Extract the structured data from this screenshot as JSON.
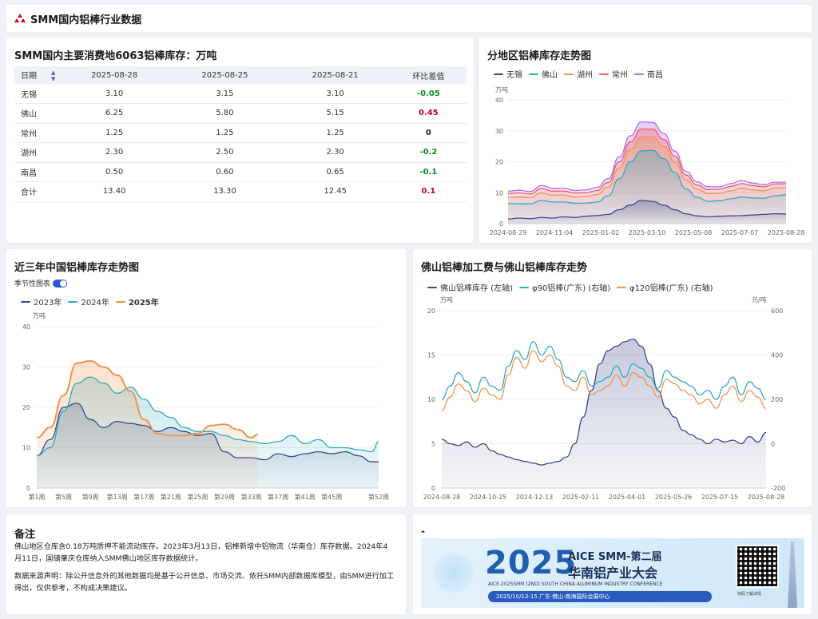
{
  "header": {
    "title": "SMM国内铝棒行业数据"
  },
  "table_card": {
    "title": "SMM国内主要消费地6063铝棒库存：万吨",
    "columns": [
      "日期",
      "2025-08-28",
      "2025-08-25",
      "2025-08-21",
      "环比差值"
    ],
    "rows": [
      [
        "无锡",
        "3.10",
        "3.15",
        "3.10",
        "-0.05"
      ],
      [
        "佛山",
        "6.25",
        "5.80",
        "5.15",
        "0.45"
      ],
      [
        "常州",
        "1.25",
        "1.25",
        "1.25",
        "0"
      ],
      [
        "湖州",
        "2.30",
        "2.50",
        "2.30",
        "-0.2"
      ],
      [
        "南昌",
        "0.50",
        "0.60",
        "0.65",
        "-0.1"
      ],
      [
        "合计",
        "13.40",
        "13.30",
        "12.45",
        "0.1"
      ]
    ]
  },
  "colors": {
    "navy": "#3b4a86",
    "teal": "#2eaac1",
    "orange": "#f0954a",
    "red": "#ef5d5d",
    "purple": "#b56cf0",
    "pos": "#d0021b",
    "neg": "#0a8a2a"
  },
  "chart_data": [
    {
      "id": "regional",
      "type": "area",
      "title": "分地区铝棒库存走势图",
      "ylabel": "万吨",
      "ylim": [
        0,
        40
      ],
      "yticks": [
        0,
        10,
        20,
        30,
        40
      ],
      "x_tick_labels": [
        "2024-08-29",
        "2024-11-04",
        "2025-01-02",
        "2025-03-10",
        "2025-05-08",
        "2025-07-07",
        "2025-08-28"
      ],
      "stacked": true,
      "series": [
        {
          "name": "无锡",
          "color": "#3b4a86",
          "values": [
            1.5,
            1.8,
            1.6,
            2.0,
            1.8,
            2.2,
            2.0,
            2.4,
            2.6,
            3.0,
            4.5,
            6.0,
            7.5,
            7.2,
            6.0,
            4.5,
            3.2,
            2.5,
            2.2,
            2.4,
            2.5,
            2.6,
            2.8,
            3.0,
            3.2,
            3.1
          ]
        },
        {
          "name": "佛山",
          "color": "#2eaac1",
          "values": [
            5.0,
            4.6,
            4.8,
            5.5,
            5.2,
            4.8,
            4.6,
            4.2,
            4.4,
            6.0,
            10.0,
            14.0,
            16.0,
            16.5,
            15.0,
            12.0,
            8.0,
            6.0,
            5.0,
            5.0,
            5.5,
            6.0,
            5.5,
            5.2,
            5.8,
            6.25
          ]
        },
        {
          "name": "湖州",
          "color": "#f0954a",
          "values": [
            2.0,
            2.2,
            2.0,
            2.4,
            2.2,
            2.3,
            2.0,
            2.2,
            2.4,
            2.8,
            3.5,
            4.0,
            4.5,
            4.3,
            4.0,
            3.5,
            3.0,
            2.6,
            2.5,
            2.4,
            2.6,
            2.8,
            2.6,
            2.4,
            2.5,
            2.3
          ]
        },
        {
          "name": "常州",
          "color": "#ef5d5d",
          "values": [
            1.2,
            1.3,
            1.2,
            1.4,
            1.3,
            1.2,
            1.3,
            1.2,
            1.3,
            1.5,
            2.0,
            2.4,
            2.6,
            2.5,
            2.2,
            1.8,
            1.5,
            1.4,
            1.3,
            1.3,
            1.4,
            1.5,
            1.4,
            1.3,
            1.3,
            1.25
          ]
        },
        {
          "name": "南昌",
          "color": "#b56cf0",
          "values": [
            0.8,
            0.9,
            0.8,
            1.0,
            0.9,
            0.9,
            0.8,
            0.9,
            1.0,
            1.2,
            1.6,
            2.0,
            2.3,
            2.2,
            2.0,
            1.6,
            1.2,
            1.0,
            0.9,
            0.8,
            0.9,
            1.0,
            0.8,
            0.7,
            0.6,
            0.5
          ]
        }
      ]
    },
    {
      "id": "seasonal",
      "type": "line",
      "title": "近三年中国铝棒库存走势图",
      "toggle_label": "季节性图表",
      "ylabel": "万吨",
      "ylim": [
        0,
        40
      ],
      "yticks": [
        0,
        10,
        20,
        30,
        40
      ],
      "x_tick_labels": [
        "第1周",
        "第5周",
        "第9周",
        "第13周",
        "第17周",
        "第21周",
        "第25周",
        "第29周",
        "第33周",
        "第37周",
        "第41周",
        "第45周",
        "第52周"
      ],
      "series": [
        {
          "name": "2023年",
          "color": "#3b4a86",
          "bold": false,
          "x": [
            1,
            3,
            5,
            7,
            9,
            11,
            13,
            15,
            17,
            19,
            21,
            23,
            25,
            27,
            29,
            31,
            33,
            35,
            37,
            39,
            41,
            43,
            45,
            47,
            49,
            51,
            52
          ],
          "values": [
            8,
            12,
            20,
            21,
            17,
            15,
            16.5,
            16,
            15.5,
            14,
            15,
            14,
            13,
            13.5,
            9,
            7.5,
            7.5,
            7,
            8.5,
            7.8,
            8.5,
            9,
            8.5,
            9,
            8,
            6.5,
            6.5
          ]
        },
        {
          "name": "2024年",
          "color": "#2eaac1",
          "bold": false,
          "x": [
            1,
            3,
            5,
            7,
            9,
            11,
            13,
            15,
            17,
            19,
            21,
            23,
            25,
            27,
            29,
            31,
            33,
            35,
            37,
            39,
            41,
            43,
            45,
            47,
            49,
            51,
            52
          ],
          "values": [
            8,
            10,
            19,
            26,
            27.5,
            26,
            23.5,
            25,
            22,
            19,
            17.5,
            15,
            14,
            14,
            13,
            12,
            11.5,
            11,
            11.5,
            13,
            11,
            12,
            10,
            10,
            9.5,
            9,
            11.5
          ]
        },
        {
          "name": "2025年",
          "color": "#f0954a",
          "bold": true,
          "x": [
            1,
            3,
            5,
            7,
            9,
            11,
            13,
            15,
            17,
            19,
            21,
            23,
            25,
            27,
            29,
            31,
            33,
            34
          ],
          "values": [
            12.5,
            15,
            23,
            31,
            31.5,
            30,
            28,
            24,
            17,
            13.5,
            13,
            13,
            13.5,
            15.5,
            15.8,
            14.5,
            12.5,
            13.3
          ]
        }
      ]
    },
    {
      "id": "foshan",
      "type": "line",
      "title": "佛山铝棒加工费与佛山铝棒库存走势",
      "ylabel_left": "万吨",
      "ylabel_right": "元/吨",
      "ylim_left": [
        0,
        20
      ],
      "yticks_left": [
        0,
        5,
        10,
        15,
        20
      ],
      "ylim_right": [
        -200,
        600
      ],
      "yticks_right": [
        -200,
        0,
        200,
        400,
        600
      ],
      "x_tick_labels": [
        "2024-08-28",
        "2024-10-25",
        "2024-12-13",
        "2025-02-11",
        "2025-04-01",
        "2025-05-26",
        "2025-07-15",
        "2025-08-28"
      ],
      "series": [
        {
          "name": "佛山铝棒库存 (左轴)",
          "color": "#3b4a86",
          "axis": "left",
          "values": [
            5.5,
            5,
            4.8,
            5.2,
            4.6,
            5.0,
            4.2,
            3.8,
            3.5,
            3.2,
            3.0,
            2.8,
            2.6,
            2.8,
            3.0,
            3.5,
            5,
            8,
            11,
            14,
            15.5,
            16,
            16.5,
            16.8,
            16,
            14,
            11,
            9,
            8,
            6.5,
            6,
            5.5,
            5,
            5.5,
            5.2,
            5.4,
            5.0,
            5.8,
            5.2,
            6.25
          ]
        },
        {
          "name": "φ90铝棒(广东) (右轴)",
          "color": "#2eaac1",
          "axis": "right",
          "values": [
            200,
            260,
            320,
            280,
            230,
            300,
            260,
            240,
            350,
            420,
            380,
            460,
            400,
            440,
            380,
            300,
            280,
            330,
            260,
            280,
            300,
            350,
            300,
            360,
            340,
            300,
            250,
            330,
            300,
            280,
            260,
            220,
            240,
            200,
            260,
            300,
            220,
            280,
            250,
            200
          ]
        },
        {
          "name": "φ120铝棒(广东) (右轴)",
          "color": "#f0954a",
          "axis": "right",
          "values": [
            150,
            210,
            270,
            240,
            190,
            250,
            220,
            200,
            310,
            390,
            340,
            420,
            370,
            400,
            350,
            260,
            240,
            300,
            220,
            240,
            260,
            310,
            260,
            320,
            300,
            260,
            210,
            290,
            270,
            240,
            220,
            180,
            200,
            160,
            220,
            260,
            190,
            240,
            210,
            160
          ]
        }
      ]
    }
  ],
  "notes": {
    "title": "备注",
    "p1": "佛山地区仓库含0.18万吨质押不能流动库存。2023年3月13日，铝棒新增中铝物流（华南仓）库存数据。2024年4月11日，国储肇庆仓库纳入SMM佛山地区库存数据统计。",
    "p2": "数据来源声明：除公开信息外的其他数据均是基于公开信息、市场交流、依托SMM内部数据库模型，由SMM进行加工得出，仅供参考，不构成决策建议。"
  },
  "banner": {
    "dash": "-",
    "year": "2025",
    "line1": "AICE SMM-第二届",
    "line2": "华南铝产业大会",
    "line3": "AICE-2025SMM (2ND) SOUTH CHINA ALUMINUM INDUSTRY CONFERENCE",
    "line4": "2025/10/13-15   广东·佛山·南海国际会展中心",
    "qr_caption": "扫码了解详情"
  }
}
